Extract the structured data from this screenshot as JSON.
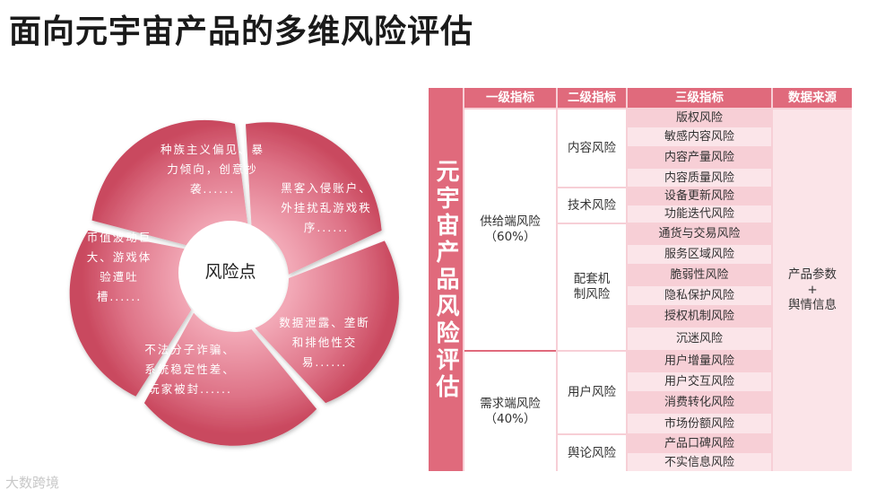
{
  "title": "面向元宇宙产品的多维风险评估",
  "cycle": {
    "center": "风险点",
    "segments": [
      "种族主义偏见、暴力倾向，创意抄袭......",
      "黑客入侵账户、外挂扰乱游戏秩序......",
      "数据泄露、垄断和排他性交易......",
      "不法分子诈骗、系统稳定性差、玩家被封......",
      "币值波动巨大、游戏体验遭吐槽......"
    ]
  },
  "table": {
    "side_title": "元宇宙产品风险评估",
    "headers": [
      "一级指标",
      "二级指标",
      "三级指标",
      "数据来源"
    ],
    "level1": [
      {
        "name": "供给端风险",
        "weight": "（60%）"
      },
      {
        "name": "需求端风险",
        "weight": "（40%）"
      }
    ],
    "level2": [
      "内容风险",
      "技术风险",
      "配套机制风险",
      "用户风险",
      "舆论风险"
    ],
    "level3": [
      "版权风险",
      "敏感内容风险",
      "内容产量风险",
      "内容质量风险",
      "设备更新风险",
      "功能迭代风险",
      "通货与交易风险",
      "服务区域风险",
      "脆弱性风险",
      "隐私保护风险",
      "授权机制风险",
      "沉迷风险",
      "用户增量风险",
      "用户交互风险",
      "消费转化风险",
      "市场份额风险",
      "产品口碑风险",
      "不实信息风险"
    ],
    "source": {
      "line1": "产品参数",
      "line2": "+",
      "line3": "舆情信息"
    }
  },
  "watermark": "大数跨境",
  "colors": {
    "accent": "#e06a7c",
    "light": "#f7cfd6"
  }
}
